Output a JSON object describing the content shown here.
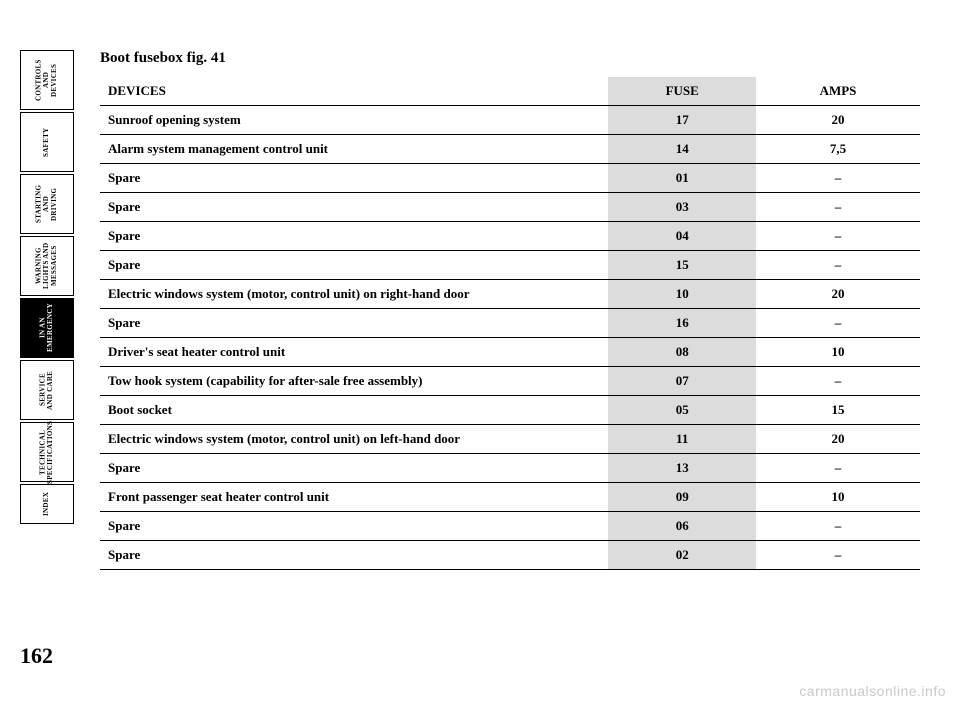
{
  "page_number": "162",
  "title": "Boot fusebox fig. 41",
  "watermark": "carmanualsonline.info",
  "sidebar": {
    "tabs": [
      {
        "label": "CONTROLS AND DEVICES",
        "active": false
      },
      {
        "label": "SAFETY",
        "active": false
      },
      {
        "label": "STARTING AND DRIVING",
        "active": false
      },
      {
        "label": "WARNING LIGHTS AND MESSAGES",
        "active": false
      },
      {
        "label": "IN AN EMERGENCY",
        "active": true
      },
      {
        "label": "SERVICE AND CARE",
        "active": false
      },
      {
        "label": "TECHNICAL SPECIFICATIONS",
        "active": false
      },
      {
        "label": "INDEX",
        "active": false,
        "index": true
      }
    ]
  },
  "table": {
    "columns": [
      "DEVICES",
      "FUSE",
      "AMPS"
    ],
    "rows": [
      [
        "Sunroof opening system",
        "17",
        "20"
      ],
      [
        "Alarm system management control unit",
        "14",
        "7,5"
      ],
      [
        "Spare",
        "01",
        "–"
      ],
      [
        "Spare",
        "03",
        "–"
      ],
      [
        "Spare",
        "04",
        "–"
      ],
      [
        "Spare",
        "15",
        "–"
      ],
      [
        "Electric windows system (motor, control unit) on right-hand door",
        "10",
        "20"
      ],
      [
        "Spare",
        "16",
        "–"
      ],
      [
        "Driver's seat heater control unit",
        "08",
        "10"
      ],
      [
        "Tow hook system (capability for after-sale free assembly)",
        "07",
        "–"
      ],
      [
        "Boot socket",
        "05",
        "15"
      ],
      [
        "Electric windows system (motor, control unit) on left-hand door",
        "11",
        "20"
      ],
      [
        "Spare",
        "13",
        "–"
      ],
      [
        "Front passenger seat heater control unit",
        "09",
        "10"
      ],
      [
        "Spare",
        "06",
        "–"
      ],
      [
        "Spare",
        "02",
        "–"
      ]
    ]
  },
  "styling": {
    "background_color": "#ffffff",
    "text_color": "#000000",
    "fuse_column_bg": "#dcdcdc",
    "row_border_color": "#000000",
    "watermark_color": "#c9c9c9",
    "title_fontsize": 15,
    "body_fontsize": 13,
    "sidebar_font": 7,
    "font_family": "Georgia, serif"
  }
}
